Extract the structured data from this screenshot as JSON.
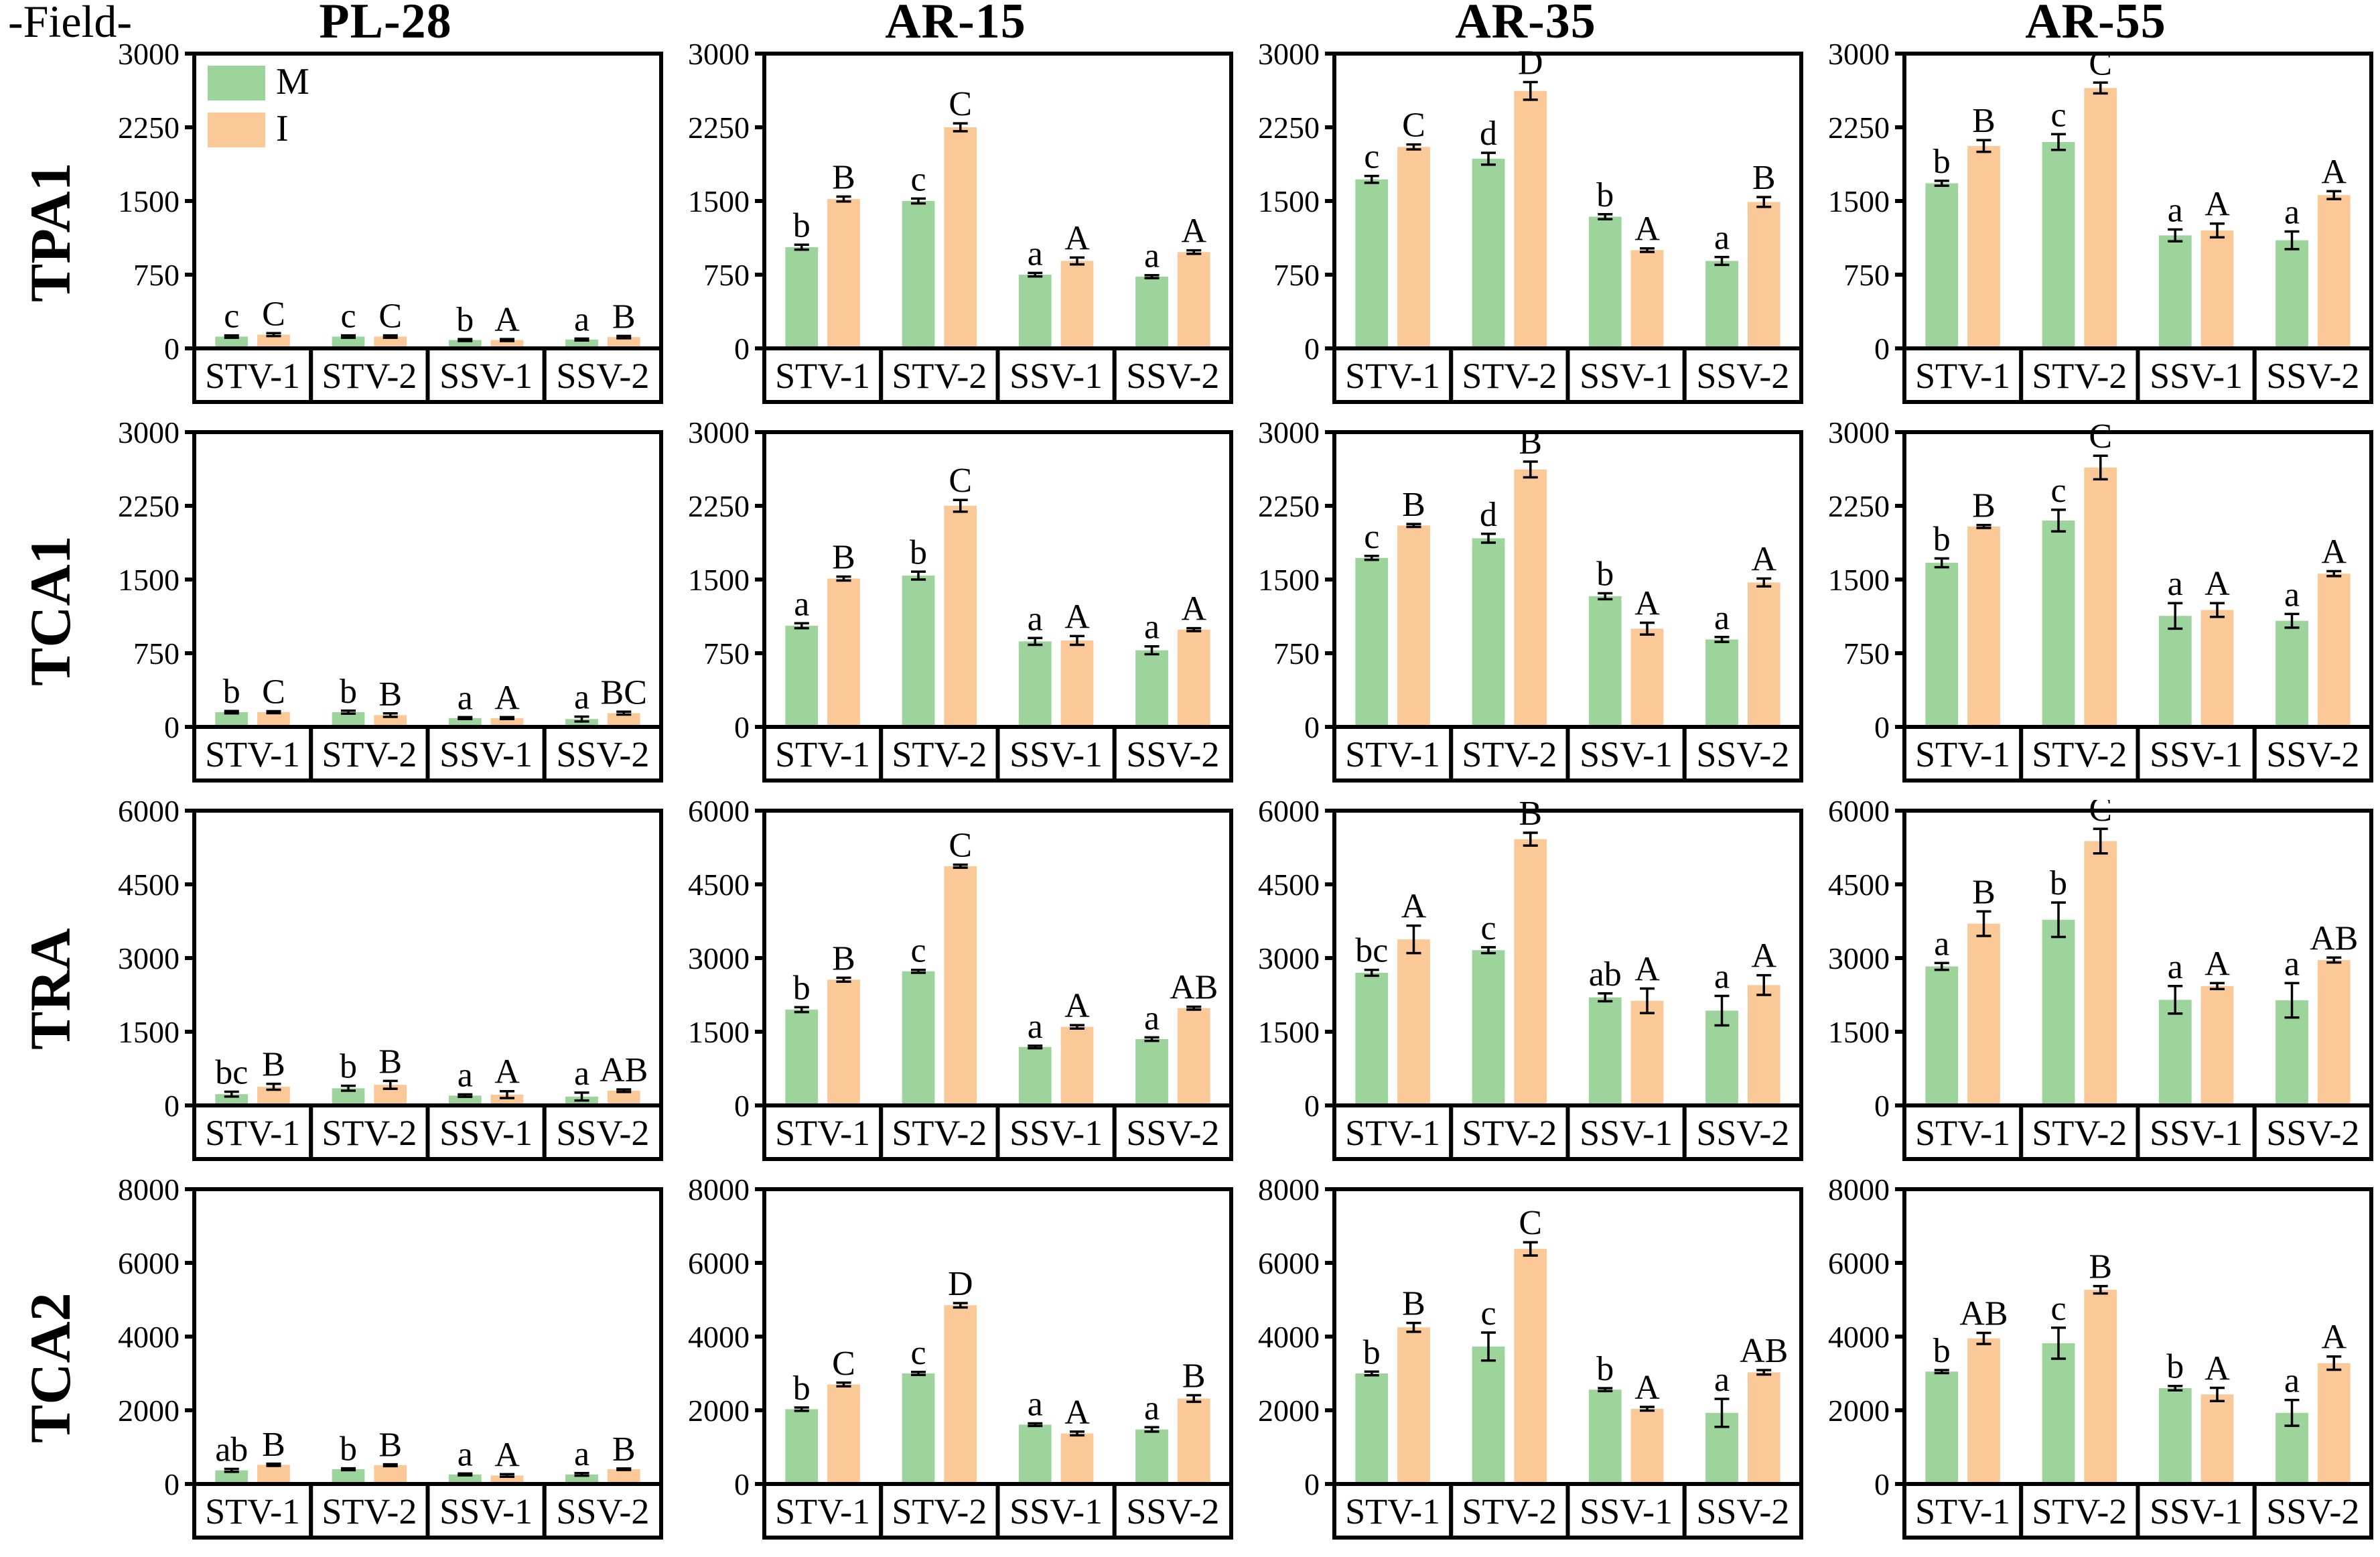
{
  "field_label": "-Field-",
  "columns": [
    "PL-28",
    "AR-15",
    "AR-35",
    "AR-55"
  ],
  "rows": [
    "TPA1",
    "TCA1",
    "TRA",
    "TCA2"
  ],
  "groups": [
    "STV-1",
    "STV-2",
    "SSV-1",
    "SSV-2"
  ],
  "legend": {
    "position": "top-left-inside-first-chart",
    "items": [
      {
        "label": "M",
        "color": "#9CD49C"
      },
      {
        "label": "I",
        "color": "#FBC998"
      }
    ]
  },
  "colors": {
    "M": "#9CD49C",
    "I": "#FBC998",
    "axis": "#000000"
  },
  "chart_data": [
    {
      "type": "bar",
      "row": "TPA1",
      "col": "PL-28",
      "ylim": [
        0,
        3000
      ],
      "yticks": [
        0,
        750,
        1500,
        2250,
        3000
      ],
      "categories": [
        "STV-1",
        "STV-2",
        "SSV-1",
        "SSV-2"
      ],
      "series": [
        {
          "name": "M",
          "values": [
            120,
            120,
            85,
            90
          ],
          "errors": [
            12,
            12,
            10,
            10
          ],
          "letters": [
            "c",
            "c",
            "b",
            "a"
          ]
        },
        {
          "name": "I",
          "values": [
            140,
            120,
            85,
            115
          ],
          "errors": [
            15,
            12,
            10,
            12
          ],
          "letters": [
            "C",
            "C",
            "A",
            "B"
          ]
        }
      ]
    },
    {
      "type": "bar",
      "row": "TPA1",
      "col": "AR-15",
      "ylim": [
        0,
        3000
      ],
      "yticks": [
        0,
        750,
        1500,
        2250,
        3000
      ],
      "categories": [
        "STV-1",
        "STV-2",
        "SSV-1",
        "SSV-2"
      ],
      "series": [
        {
          "name": "M",
          "values": [
            1030,
            1500,
            750,
            730
          ],
          "errors": [
            25,
            25,
            18,
            15
          ],
          "letters": [
            "b",
            "c",
            "a",
            "a"
          ]
        },
        {
          "name": "I",
          "values": [
            1520,
            2250,
            890,
            980
          ],
          "errors": [
            25,
            40,
            35,
            18
          ],
          "letters": [
            "B",
            "C",
            "A",
            "A"
          ]
        }
      ]
    },
    {
      "type": "bar",
      "row": "TPA1",
      "col": "AR-35",
      "ylim": [
        0,
        3000
      ],
      "yticks": [
        0,
        750,
        1500,
        2250,
        3000
      ],
      "categories": [
        "STV-1",
        "STV-2",
        "SSV-1",
        "SSV-2"
      ],
      "series": [
        {
          "name": "M",
          "values": [
            1720,
            1930,
            1340,
            890
          ],
          "errors": [
            35,
            60,
            25,
            40
          ],
          "letters": [
            "c",
            "d",
            "b",
            "a"
          ]
        },
        {
          "name": "I",
          "values": [
            2050,
            2620,
            1000,
            1490
          ],
          "errors": [
            25,
            90,
            18,
            50
          ],
          "letters": [
            "C",
            "D",
            "A",
            "B"
          ]
        }
      ]
    },
    {
      "type": "bar",
      "row": "TPA1",
      "col": "AR-55",
      "ylim": [
        0,
        3000
      ],
      "yticks": [
        0,
        750,
        1500,
        2250,
        3000
      ],
      "categories": [
        "STV-1",
        "STV-2",
        "SSV-1",
        "SSV-2"
      ],
      "series": [
        {
          "name": "M",
          "values": [
            1680,
            2100,
            1150,
            1100
          ],
          "errors": [
            25,
            80,
            60,
            90
          ],
          "letters": [
            "b",
            "c",
            "a",
            "a"
          ]
        },
        {
          "name": "I",
          "values": [
            2060,
            2650,
            1200,
            1560
          ],
          "errors": [
            60,
            55,
            70,
            40
          ],
          "letters": [
            "B",
            "C",
            "A",
            "A"
          ]
        }
      ]
    },
    {
      "type": "bar",
      "row": "TCA1",
      "col": "PL-28",
      "ylim": [
        0,
        3000
      ],
      "yticks": [
        0,
        750,
        1500,
        2250,
        3000
      ],
      "categories": [
        "STV-1",
        "STV-2",
        "SSV-1",
        "SSV-2"
      ],
      "series": [
        {
          "name": "M",
          "values": [
            150,
            150,
            90,
            80
          ],
          "errors": [
            12,
            15,
            10,
            25
          ],
          "letters": [
            "b",
            "b",
            "a",
            "a"
          ]
        },
        {
          "name": "I",
          "values": [
            150,
            120,
            90,
            140
          ],
          "errors": [
            10,
            18,
            10,
            15
          ],
          "letters": [
            "C",
            "B",
            "A",
            "BC"
          ]
        }
      ]
    },
    {
      "type": "bar",
      "row": "TCA1",
      "col": "AR-15",
      "ylim": [
        0,
        3000
      ],
      "yticks": [
        0,
        750,
        1500,
        2250,
        3000
      ],
      "categories": [
        "STV-1",
        "STV-2",
        "SSV-1",
        "SSV-2"
      ],
      "series": [
        {
          "name": "M",
          "values": [
            1030,
            1540,
            870,
            780
          ],
          "errors": [
            25,
            40,
            35,
            40
          ],
          "letters": [
            "a",
            "b",
            "a",
            "a"
          ]
        },
        {
          "name": "I",
          "values": [
            1510,
            2250,
            880,
            990
          ],
          "errors": [
            20,
            60,
            45,
            15
          ],
          "letters": [
            "B",
            "C",
            "A",
            "A"
          ]
        }
      ]
    },
    {
      "type": "bar",
      "row": "TCA1",
      "col": "AR-35",
      "ylim": [
        0,
        3000
      ],
      "yticks": [
        0,
        750,
        1500,
        2250,
        3000
      ],
      "categories": [
        "STV-1",
        "STV-2",
        "SSV-1",
        "SSV-2"
      ],
      "series": [
        {
          "name": "M",
          "values": [
            1720,
            1920,
            1330,
            890
          ],
          "errors": [
            20,
            45,
            30,
            25
          ],
          "letters": [
            "c",
            "d",
            "b",
            "a"
          ]
        },
        {
          "name": "I",
          "values": [
            2050,
            2620,
            1000,
            1470
          ],
          "errors": [
            15,
            80,
            60,
            40
          ],
          "letters": [
            "B",
            "B",
            "A",
            "A"
          ]
        }
      ]
    },
    {
      "type": "bar",
      "row": "TCA1",
      "col": "AR-55",
      "ylim": [
        0,
        3000
      ],
      "yticks": [
        0,
        750,
        1500,
        2250,
        3000
      ],
      "categories": [
        "STV-1",
        "STV-2",
        "SSV-1",
        "SSV-2"
      ],
      "series": [
        {
          "name": "M",
          "values": [
            1670,
            2100,
            1130,
            1080
          ],
          "errors": [
            45,
            110,
            130,
            70
          ],
          "letters": [
            "b",
            "c",
            "a",
            "a"
          ]
        },
        {
          "name": "I",
          "values": [
            2040,
            2640,
            1190,
            1560
          ],
          "errors": [
            15,
            120,
            70,
            25
          ],
          "letters": [
            "B",
            "C",
            "A",
            "A"
          ]
        }
      ]
    },
    {
      "type": "bar",
      "row": "TRA",
      "col": "PL-28",
      "ylim": [
        0,
        6000
      ],
      "yticks": [
        0,
        1500,
        3000,
        4500,
        6000
      ],
      "categories": [
        "STV-1",
        "STV-2",
        "SSV-1",
        "SSV-2"
      ],
      "series": [
        {
          "name": "M",
          "values": [
            230,
            350,
            200,
            180
          ],
          "errors": [
            50,
            50,
            25,
            80
          ],
          "letters": [
            "bc",
            "b",
            "a",
            "a"
          ]
        },
        {
          "name": "I",
          "values": [
            380,
            420,
            220,
            300
          ],
          "errors": [
            60,
            80,
            70,
            25
          ],
          "letters": [
            "B",
            "B",
            "A",
            "AB"
          ]
        }
      ]
    },
    {
      "type": "bar",
      "row": "TRA",
      "col": "AR-15",
      "ylim": [
        0,
        6000
      ],
      "yticks": [
        0,
        1500,
        3000,
        4500,
        6000
      ],
      "categories": [
        "STV-1",
        "STV-2",
        "SSV-1",
        "SSV-2"
      ],
      "series": [
        {
          "name": "M",
          "values": [
            1950,
            2730,
            1190,
            1350
          ],
          "errors": [
            50,
            30,
            25,
            35
          ],
          "letters": [
            "b",
            "c",
            "a",
            "a"
          ]
        },
        {
          "name": "I",
          "values": [
            2560,
            4870,
            1600,
            1980
          ],
          "errors": [
            40,
            30,
            35,
            30
          ],
          "letters": [
            "B",
            "C",
            "A",
            "AB"
          ]
        }
      ]
    },
    {
      "type": "bar",
      "row": "TRA",
      "col": "AR-35",
      "ylim": [
        0,
        6000
      ],
      "yticks": [
        0,
        1500,
        3000,
        4500,
        6000
      ],
      "categories": [
        "STV-1",
        "STV-2",
        "SSV-1",
        "SSV-2"
      ],
      "series": [
        {
          "name": "M",
          "values": [
            2700,
            3160,
            2200,
            1930
          ],
          "errors": [
            60,
            60,
            80,
            300
          ],
          "letters": [
            "bc",
            "c",
            "ab",
            "a"
          ]
        },
        {
          "name": "I",
          "values": [
            3380,
            5420,
            2130,
            2450
          ],
          "errors": [
            280,
            130,
            250,
            200
          ],
          "letters": [
            "A",
            "B",
            "A",
            "A"
          ]
        }
      ]
    },
    {
      "type": "bar",
      "row": "TRA",
      "col": "AR-55",
      "ylim": [
        0,
        6000
      ],
      "yticks": [
        0,
        1500,
        3000,
        4500,
        6000
      ],
      "categories": [
        "STV-1",
        "STV-2",
        "SSV-1",
        "SSV-2"
      ],
      "series": [
        {
          "name": "M",
          "values": [
            2830,
            3780,
            2150,
            2140
          ],
          "errors": [
            70,
            350,
            280,
            350
          ],
          "letters": [
            "a",
            "b",
            "a",
            "a"
          ]
        },
        {
          "name": "I",
          "values": [
            3700,
            5380,
            2430,
            2960
          ],
          "errors": [
            250,
            250,
            60,
            50
          ],
          "letters": [
            "B",
            "C",
            "A",
            "AB"
          ]
        }
      ]
    },
    {
      "type": "bar",
      "row": "TCA2",
      "col": "PL-28",
      "ylim": [
        0,
        8000
      ],
      "yticks": [
        0,
        2000,
        4000,
        6000,
        8000
      ],
      "categories": [
        "STV-1",
        "STV-2",
        "SSV-1",
        "SSV-2"
      ],
      "series": [
        {
          "name": "M",
          "values": [
            370,
            400,
            260,
            260
          ],
          "errors": [
            40,
            25,
            25,
            35
          ],
          "letters": [
            "ab",
            "b",
            "a",
            "a"
          ]
        },
        {
          "name": "I",
          "values": [
            520,
            510,
            230,
            400
          ],
          "errors": [
            30,
            25,
            35,
            20
          ],
          "letters": [
            "B",
            "B",
            "A",
            "B"
          ]
        }
      ]
    },
    {
      "type": "bar",
      "row": "TCA2",
      "col": "AR-15",
      "ylim": [
        0,
        8000
      ],
      "yticks": [
        0,
        2000,
        4000,
        6000,
        8000
      ],
      "categories": [
        "STV-1",
        "STV-2",
        "SSV-1",
        "SSV-2"
      ],
      "series": [
        {
          "name": "M",
          "values": [
            2030,
            3000,
            1610,
            1480
          ],
          "errors": [
            45,
            40,
            35,
            60
          ],
          "letters": [
            "b",
            "c",
            "a",
            "a"
          ]
        },
        {
          "name": "I",
          "values": [
            2700,
            4850,
            1370,
            2320
          ],
          "errors": [
            50,
            60,
            50,
            90
          ],
          "letters": [
            "C",
            "D",
            "A",
            "B"
          ]
        }
      ]
    },
    {
      "type": "bar",
      "row": "TCA2",
      "col": "AR-35",
      "ylim": [
        0,
        8000
      ],
      "yticks": [
        0,
        2000,
        4000,
        6000,
        8000
      ],
      "categories": [
        "STV-1",
        "STV-2",
        "SSV-1",
        "SSV-2"
      ],
      "series": [
        {
          "name": "M",
          "values": [
            3000,
            3730,
            2560,
            1930
          ],
          "errors": [
            50,
            380,
            40,
            380
          ],
          "letters": [
            "b",
            "c",
            "b",
            "a"
          ]
        },
        {
          "name": "I",
          "values": [
            4250,
            6380,
            2040,
            3030
          ],
          "errors": [
            120,
            180,
            50,
            60
          ],
          "letters": [
            "B",
            "C",
            "A",
            "AB"
          ]
        }
      ]
    },
    {
      "type": "bar",
      "row": "TCA2",
      "col": "AR-55",
      "ylim": [
        0,
        8000
      ],
      "yticks": [
        0,
        2000,
        4000,
        6000,
        8000
      ],
      "categories": [
        "STV-1",
        "STV-2",
        "SSV-1",
        "SSV-2"
      ],
      "series": [
        {
          "name": "M",
          "values": [
            3050,
            3820,
            2600,
            1930
          ],
          "errors": [
            40,
            420,
            60,
            350
          ],
          "letters": [
            "b",
            "c",
            "b",
            "a"
          ]
        },
        {
          "name": "I",
          "values": [
            3950,
            5270,
            2430,
            3280
          ],
          "errors": [
            150,
            100,
            180,
            180
          ],
          "letters": [
            "AB",
            "B",
            "A",
            "A"
          ]
        }
      ]
    }
  ]
}
